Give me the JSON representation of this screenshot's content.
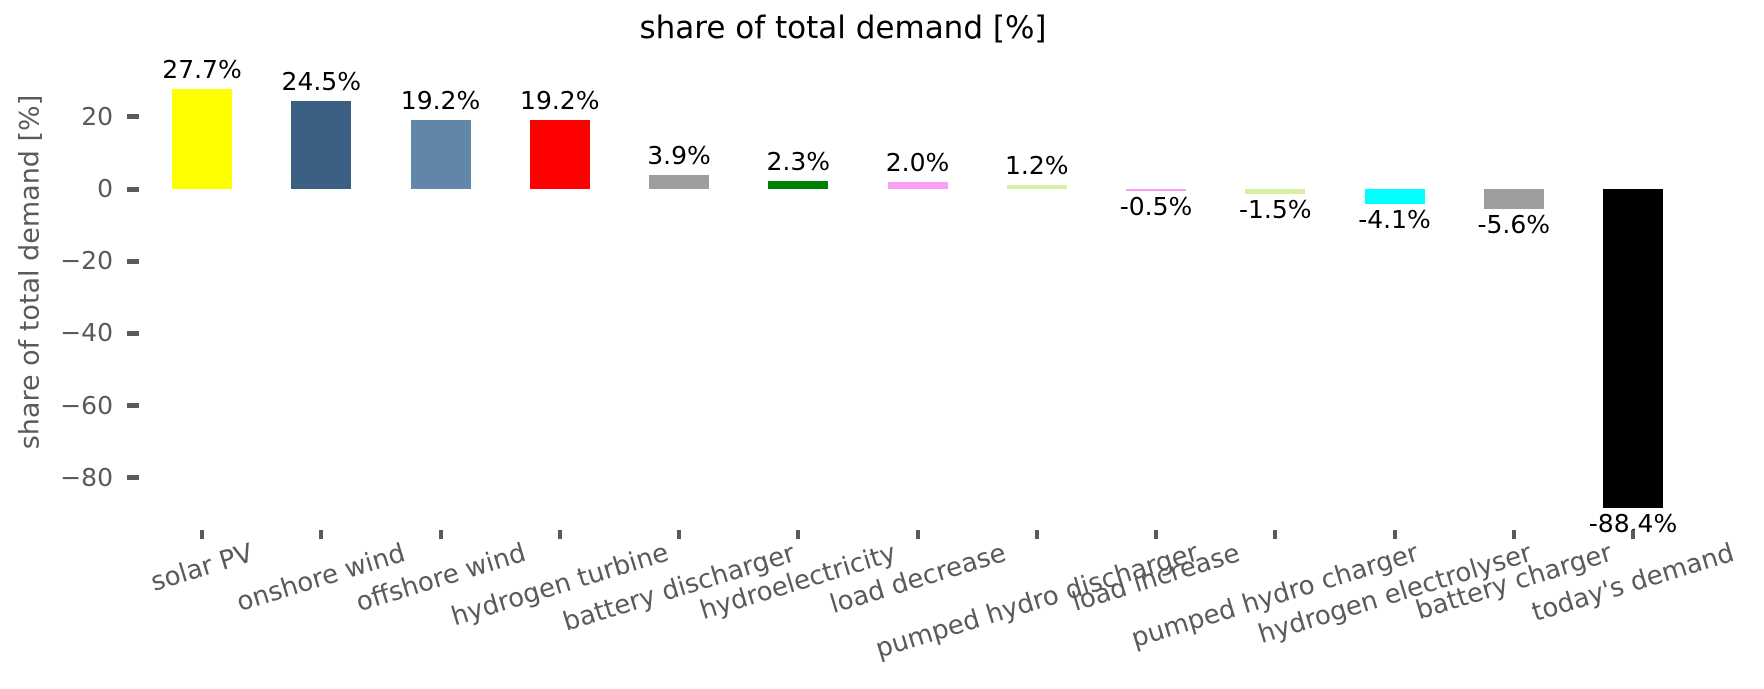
{
  "chart_data": {
    "type": "bar",
    "title": "share of total demand [%]",
    "xlabel": "",
    "ylabel": "share of total demand [%]",
    "categories": [
      "solar PV",
      "onshore wind",
      "offshore wind",
      "hydrogen turbine",
      "battery discharger",
      "hydroelectricity",
      "load decrease",
      "pumped hydro discharger",
      "load increase",
      "pumped hydro charger",
      "hydrogen electrolyser",
      "battery charger",
      "today's demand"
    ],
    "values": [
      27.7,
      24.5,
      19.2,
      19.2,
      3.9,
      2.3,
      2.0,
      1.2,
      -0.5,
      -1.5,
      -4.1,
      -5.6,
      -88.4
    ],
    "value_labels": [
      "27.7%",
      "24.5%",
      "19.2%",
      "19.2%",
      "3.9%",
      "2.3%",
      "2.0%",
      "1.2%",
      "-0.5%",
      "-1.5%",
      "-4.1%",
      "-5.6%",
      "-88.4%"
    ],
    "bar_colors": [
      "#ffff00",
      "#3b6083",
      "#6087a8",
      "#ff0000",
      "#9e9e9e",
      "#008000",
      "#fa9ff5",
      "#d4f0a0",
      "#fa9ff5",
      "#d4f0a0",
      "#00ffff",
      "#9e9e9e",
      "#000000"
    ],
    "ytick_values": [
      20,
      0,
      -20,
      -40,
      -60,
      -80
    ],
    "ytick_labels": [
      "20",
      "0",
      "−20",
      "−40",
      "−60",
      "−80"
    ],
    "ylim": [
      -94,
      36
    ],
    "grid": false,
    "legend": false,
    "title_color": "#000000",
    "value_label_color": "#000000",
    "axis_color": "#5a5a5a"
  }
}
